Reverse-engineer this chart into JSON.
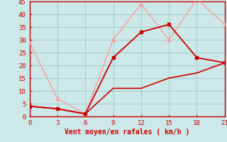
{
  "xlabel": "Vent moyen/en rafales ( km/h )",
  "bg_color": "#cce8e8",
  "grid_color": "#aacfcf",
  "line1_x": [
    0,
    3,
    6,
    9,
    12,
    15,
    18,
    21
  ],
  "line1_y": [
    4,
    3,
    1,
    23,
    33,
    36,
    23,
    21
  ],
  "line1_color": "#cc0000",
  "line1_marker": "s",
  "line1_markersize": 3,
  "line2_x": [
    0,
    3,
    6,
    9,
    12,
    15,
    18,
    21
  ],
  "line2_y": [
    29,
    7,
    1,
    30,
    44,
    30,
    46,
    36
  ],
  "line2_color": "#ff9999",
  "line2_marker": "^",
  "line2_markersize": 3,
  "line3_x": [
    0,
    3,
    6,
    9,
    12,
    15,
    18,
    21
  ],
  "line3_y": [
    4,
    3,
    1,
    11,
    11,
    15,
    17,
    21
  ],
  "line3_color": "#cc0000",
  "line3_lw": 1.2,
  "xlim": [
    0,
    21
  ],
  "ylim": [
    0,
    45
  ],
  "xticks": [
    0,
    3,
    6,
    9,
    12,
    15,
    18,
    21
  ],
  "yticks": [
    0,
    5,
    10,
    15,
    20,
    25,
    30,
    35,
    40,
    45
  ],
  "axis_color": "#cc0000",
  "tick_label_color": "#cc0000",
  "label_fontsize": 7,
  "tick_fontsize": 6.5
}
